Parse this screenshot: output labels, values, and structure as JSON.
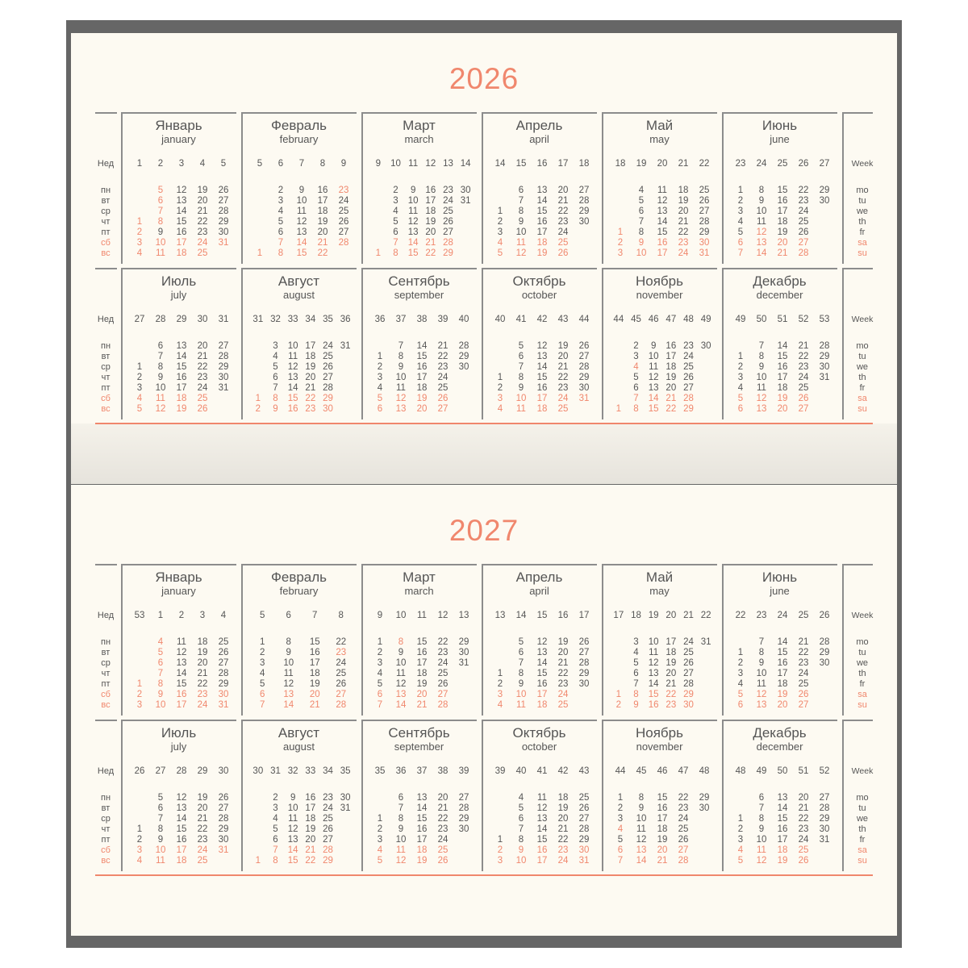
{
  "colors": {
    "accent": "#f0876d",
    "text": "#555555",
    "frame": "#666666",
    "paper": "#fdfaf2"
  },
  "labels": {
    "week_ru": "Нед",
    "week_en": "Week",
    "weekdays_ru": [
      "пн",
      "вт",
      "ср",
      "чт",
      "пт",
      "сб",
      "вс"
    ],
    "weekdays_en": [
      "mo",
      "tu",
      "we",
      "th",
      "fr",
      "sa",
      "su"
    ]
  },
  "years": [
    {
      "year": "2026",
      "months": [
        {
          "ru": "Январь",
          "en": "january",
          "weeks": [
            1,
            2,
            3,
            4,
            5
          ],
          "first_weekday": 3,
          "days": 31,
          "holidays": [
            1,
            2,
            5,
            6,
            7,
            8
          ]
        },
        {
          "ru": "Февраль",
          "en": "february",
          "weeks": [
            5,
            6,
            7,
            8,
            9
          ],
          "first_weekday": 6,
          "days": 28,
          "holidays": [
            23
          ]
        },
        {
          "ru": "Март",
          "en": "march",
          "weeks": [
            9,
            10,
            11,
            12,
            13,
            14
          ],
          "first_weekday": 6,
          "days": 31,
          "holidays": []
        },
        {
          "ru": "Апрель",
          "en": "april",
          "weeks": [
            14,
            15,
            16,
            17,
            18
          ],
          "first_weekday": 2,
          "days": 30,
          "holidays": []
        },
        {
          "ru": "Май",
          "en": "may",
          "weeks": [
            18,
            19,
            20,
            21,
            22
          ],
          "first_weekday": 4,
          "days": 31,
          "holidays": [
            1
          ]
        },
        {
          "ru": "Июнь",
          "en": "june",
          "weeks": [
            23,
            24,
            25,
            26,
            27
          ],
          "first_weekday": 0,
          "days": 30,
          "holidays": [
            12
          ]
        },
        {
          "ru": "Июль",
          "en": "july",
          "weeks": [
            27,
            28,
            29,
            30,
            31
          ],
          "first_weekday": 2,
          "days": 31,
          "holidays": []
        },
        {
          "ru": "Август",
          "en": "august",
          "weeks": [
            31,
            32,
            33,
            34,
            35,
            36
          ],
          "first_weekday": 5,
          "days": 31,
          "holidays": []
        },
        {
          "ru": "Сентябрь",
          "en": "september",
          "weeks": [
            36,
            37,
            38,
            39,
            40
          ],
          "first_weekday": 1,
          "days": 30,
          "holidays": []
        },
        {
          "ru": "Октябрь",
          "en": "october",
          "weeks": [
            40,
            41,
            42,
            43,
            44
          ],
          "first_weekday": 3,
          "days": 31,
          "holidays": []
        },
        {
          "ru": "Ноябрь",
          "en": "november",
          "weeks": [
            44,
            45,
            46,
            47,
            48,
            49
          ],
          "first_weekday": 6,
          "days": 30,
          "holidays": [
            4
          ]
        },
        {
          "ru": "Декабрь",
          "en": "december",
          "weeks": [
            49,
            50,
            51,
            52,
            53
          ],
          "first_weekday": 1,
          "days": 31,
          "holidays": []
        }
      ]
    },
    {
      "year": "2027",
      "months": [
        {
          "ru": "Январь",
          "en": "january",
          "weeks": [
            53,
            1,
            2,
            3,
            4
          ],
          "first_weekday": 4,
          "days": 31,
          "holidays": [
            1,
            4,
            5,
            6,
            7,
            8
          ]
        },
        {
          "ru": "Февраль",
          "en": "february",
          "weeks": [
            5,
            6,
            7,
            8
          ],
          "first_weekday": 0,
          "days": 28,
          "holidays": [
            23
          ]
        },
        {
          "ru": "Март",
          "en": "march",
          "weeks": [
            9,
            10,
            11,
            12,
            13
          ],
          "first_weekday": 0,
          "days": 31,
          "holidays": [
            8
          ]
        },
        {
          "ru": "Апрель",
          "en": "april",
          "weeks": [
            13,
            14,
            15,
            16,
            17
          ],
          "first_weekday": 3,
          "days": 30,
          "holidays": []
        },
        {
          "ru": "Май",
          "en": "may",
          "weeks": [
            17,
            18,
            19,
            20,
            21,
            22
          ],
          "first_weekday": 5,
          "days": 31,
          "holidays": []
        },
        {
          "ru": "Июнь",
          "en": "june",
          "weeks": [
            22,
            23,
            24,
            25,
            26
          ],
          "first_weekday": 1,
          "days": 30,
          "holidays": []
        },
        {
          "ru": "Июль",
          "en": "july",
          "weeks": [
            26,
            27,
            28,
            29,
            30
          ],
          "first_weekday": 3,
          "days": 31,
          "holidays": []
        },
        {
          "ru": "Август",
          "en": "august",
          "weeks": [
            30,
            31,
            32,
            33,
            34,
            35
          ],
          "first_weekday": 6,
          "days": 31,
          "holidays": []
        },
        {
          "ru": "Сентябрь",
          "en": "september",
          "weeks": [
            35,
            36,
            37,
            38,
            39
          ],
          "first_weekday": 2,
          "days": 30,
          "holidays": []
        },
        {
          "ru": "Октябрь",
          "en": "october",
          "weeks": [
            39,
            40,
            41,
            42,
            43
          ],
          "first_weekday": 4,
          "days": 31,
          "holidays": []
        },
        {
          "ru": "Ноябрь",
          "en": "november",
          "weeks": [
            44,
            45,
            46,
            47,
            48
          ],
          "first_weekday": 0,
          "days": 30,
          "holidays": [
            4
          ]
        },
        {
          "ru": "Декабрь",
          "en": "december",
          "weeks": [
            48,
            49,
            50,
            51,
            52
          ],
          "first_weekday": 2,
          "days": 31,
          "holidays": []
        }
      ]
    }
  ]
}
